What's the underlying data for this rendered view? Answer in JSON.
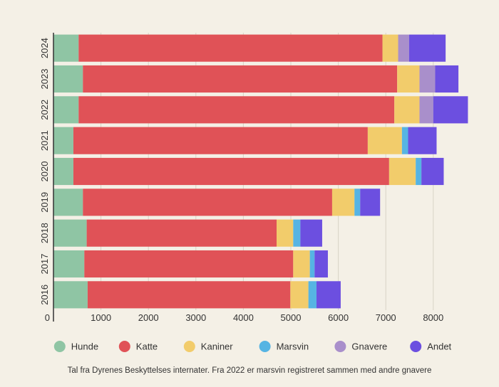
{
  "chart_data": {
    "type": "bar",
    "orientation": "horizontal",
    "stacked": true,
    "categories": [
      "2024",
      "2023",
      "2022",
      "2021",
      "2020",
      "2019",
      "2018",
      "2017",
      "2016"
    ],
    "series": [
      {
        "name": "Hunde",
        "color": "#8fc5a4",
        "values": [
          530,
          620,
          530,
          420,
          420,
          620,
          700,
          650,
          720
        ]
      },
      {
        "name": "Katte",
        "color": "#e05257",
        "values": [
          6400,
          6620,
          6650,
          6200,
          6650,
          5250,
          4000,
          4400,
          4270
        ]
      },
      {
        "name": "Kaniner",
        "color": "#f2cc6b",
        "values": [
          330,
          470,
          530,
          720,
          560,
          470,
          350,
          350,
          380
        ]
      },
      {
        "name": "Marsvin",
        "color": "#56b4e3",
        "values": [
          0,
          0,
          0,
          130,
          120,
          120,
          150,
          100,
          170
        ]
      },
      {
        "name": "Gnavere",
        "color": "#a98fcb",
        "values": [
          230,
          330,
          290,
          0,
          0,
          0,
          0,
          0,
          0
        ]
      },
      {
        "name": "Andet",
        "color": "#6c4fe0",
        "values": [
          770,
          490,
          730,
          600,
          470,
          420,
          460,
          280,
          510
        ]
      }
    ],
    "xticks": [
      0,
      1000,
      2000,
      3000,
      4000,
      5000,
      6000,
      7000,
      8000
    ],
    "xlim": [
      0,
      8800
    ],
    "grid": true,
    "legend_position": "bottom",
    "xlabel": "",
    "ylabel": "",
    "caption": "Tal fra Dyrenes Beskyttelses internater. Fra 2022 er marsvin registreret sammen med andre gnavere"
  }
}
